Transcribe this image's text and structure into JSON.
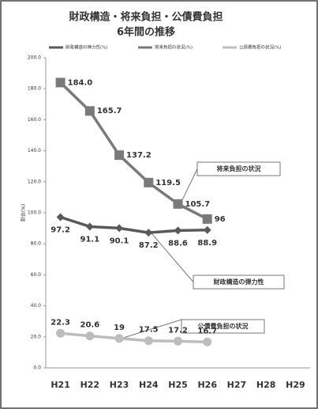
{
  "chart_data": {
    "type": "line",
    "title": "財政構造・将来負担・公債費負担",
    "subtitle": "6年間の推移",
    "y_label": "割合(%)",
    "categories": [
      "H21",
      "H22",
      "H23",
      "H24",
      "H25",
      "H26",
      "H27",
      "H28",
      "H29"
    ],
    "series": [
      {
        "name": "財政構造の弾力性(%)",
        "color": "#5a5a5a",
        "marker": "diamond",
        "values": [
          97.2,
          91.1,
          90.1,
          87.2,
          88.6,
          88.9,
          null,
          null,
          null
        ]
      },
      {
        "name": "将来負担の状況(%)",
        "color": "#7a7a7a",
        "marker": "square",
        "values": [
          184.0,
          165.7,
          137.2,
          119.5,
          105.7,
          96,
          null,
          null,
          null
        ],
        "value_labels": [
          "184.0",
          "165.7",
          "137.2",
          "119.5",
          "105.7",
          "96",
          null,
          null,
          null
        ]
      },
      {
        "name": "公債費負担の状況(%)",
        "color": "#bdbdbd",
        "marker": "circle",
        "values": [
          22.3,
          20.6,
          19,
          17.5,
          17.2,
          16.7,
          null,
          null,
          null
        ]
      }
    ],
    "annotations": [
      "将来負担の状況",
      "財政構造の弾力性",
      "公債費負担の状況"
    ],
    "ylim": [
      0,
      200
    ],
    "yticks": [
      {
        "value": 0,
        "label": "0.0"
      },
      {
        "value": 20,
        "label": "20.0"
      },
      {
        "value": 40,
        "label": "40.0"
      },
      {
        "value": 60,
        "label": "60.0"
      },
      {
        "value": 80,
        "label": "80.0"
      },
      {
        "value": 100,
        "label": "100.0"
      },
      {
        "value": 120,
        "label": "120.0"
      },
      {
        "value": 140,
        "label": "140.0"
      },
      {
        "value": 160,
        "label": "160.0"
      },
      {
        "value": 180,
        "label": "180.0"
      },
      {
        "value": 200,
        "label": "200.0"
      }
    ],
    "grid": false
  }
}
